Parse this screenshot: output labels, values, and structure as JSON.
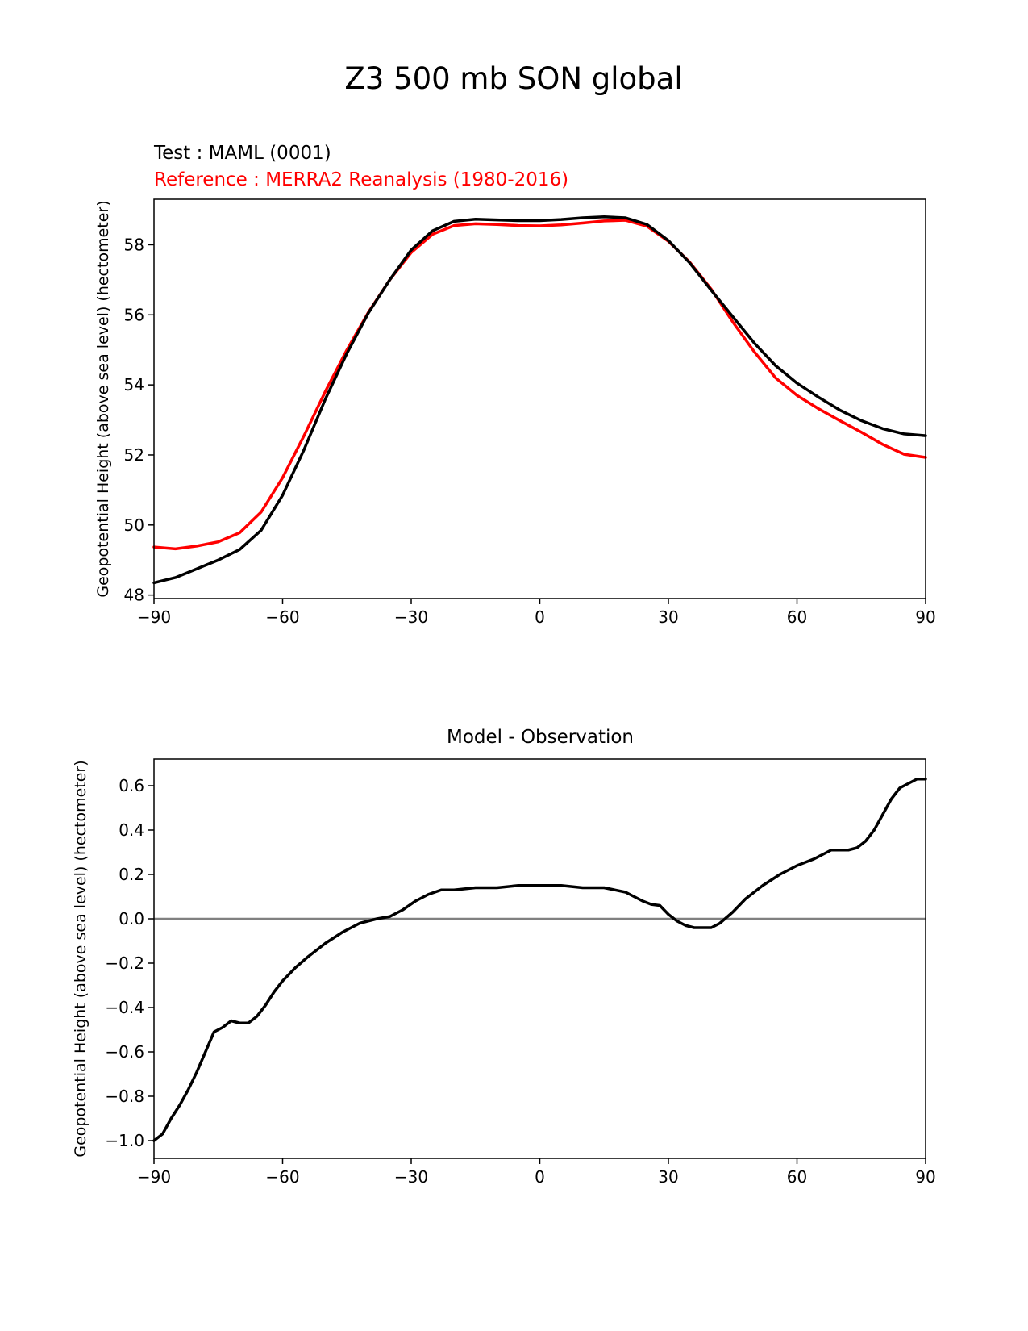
{
  "figure_title": "Z3 500 mb SON global",
  "chart_data": [
    {
      "type": "line",
      "test_label": "Test : MAML (0001)",
      "reference_label": "Reference : MERRA2 Reanalysis (1980-2016)",
      "xlabel": "",
      "ylabel": "Geopotential Height (above sea level) (hectometer)",
      "xlim": [
        -90,
        90
      ],
      "ylim": [
        47.9,
        59.3
      ],
      "xticks": [
        -90,
        -60,
        -30,
        0,
        30,
        60,
        90
      ],
      "xtick_labels": [
        "−90",
        "−60",
        "−30",
        "0",
        "30",
        "60",
        "90"
      ],
      "yticks": [
        48,
        50,
        52,
        54,
        56,
        58
      ],
      "ytick_labels": [
        "48",
        "50",
        "52",
        "54",
        "56",
        "58"
      ],
      "x": [
        -90,
        -85,
        -80,
        -75,
        -70,
        -65,
        -60,
        -55,
        -50,
        -45,
        -40,
        -35,
        -30,
        -25,
        -20,
        -15,
        -10,
        -5,
        0,
        5,
        10,
        15,
        20,
        25,
        30,
        35,
        40,
        45,
        50,
        55,
        60,
        65,
        70,
        75,
        80,
        85,
        90
      ],
      "series": [
        {
          "name": "Test",
          "color": "#000000",
          "values": [
            48.35,
            48.5,
            48.75,
            49.0,
            49.3,
            49.85,
            50.85,
            52.15,
            53.6,
            54.9,
            56.05,
            57.0,
            57.85,
            58.4,
            58.67,
            58.73,
            58.71,
            58.69,
            58.69,
            58.72,
            58.77,
            58.8,
            58.77,
            58.58,
            58.12,
            57.48,
            56.7,
            55.95,
            55.2,
            54.55,
            54.05,
            53.65,
            53.28,
            52.98,
            52.75,
            52.6,
            52.55
          ]
        },
        {
          "name": "Reference",
          "color": "#ff0000",
          "values": [
            49.37,
            49.32,
            49.4,
            49.52,
            49.78,
            50.37,
            51.35,
            52.55,
            53.82,
            55.0,
            56.07,
            57.0,
            57.78,
            58.3,
            58.55,
            58.6,
            58.58,
            58.55,
            58.54,
            58.57,
            58.62,
            58.68,
            58.7,
            58.53,
            58.1,
            57.5,
            56.73,
            55.8,
            54.95,
            54.2,
            53.7,
            53.32,
            52.98,
            52.65,
            52.3,
            52.02,
            51.93
          ]
        }
      ]
    },
    {
      "type": "line",
      "title": "Model - Observation",
      "xlabel": "",
      "ylabel": "Geopotential Height (above sea level) (hectometer)",
      "xlim": [
        -90,
        90
      ],
      "ylim": [
        -1.08,
        0.72
      ],
      "xticks": [
        -90,
        -60,
        -30,
        0,
        30,
        60,
        90
      ],
      "xtick_labels": [
        "−90",
        "−60",
        "−30",
        "0",
        "30",
        "60",
        "90"
      ],
      "yticks": [
        0.6,
        0.4,
        0.2,
        0.0,
        -0.2,
        -0.4,
        -0.6,
        -0.8,
        -1.0
      ],
      "ytick_labels": [
        "0.6",
        "0.4",
        "0.2",
        "0.0",
        "−0.2",
        "−0.4",
        "−0.6",
        "−0.8",
        "−1.0"
      ],
      "zero_line": {
        "y": 0,
        "color": "#808080"
      },
      "x": [
        -90,
        -88,
        -86,
        -84,
        -82,
        -80,
        -78,
        -76,
        -74,
        -72,
        -70,
        -68,
        -66,
        -64,
        -62,
        -60,
        -57,
        -54,
        -50,
        -46,
        -42,
        -38,
        -35,
        -32,
        -29,
        -26,
        -23,
        -20,
        -15,
        -10,
        -5,
        0,
        5,
        10,
        15,
        20,
        24,
        26,
        28,
        30,
        32,
        34,
        36,
        38,
        40,
        42,
        45,
        48,
        52,
        56,
        60,
        64,
        66,
        68,
        70,
        72,
        74,
        76,
        78,
        80,
        82,
        84,
        86,
        88,
        90
      ],
      "series": [
        {
          "name": "Model - Observation",
          "color": "#000000",
          "values": [
            -1.0,
            -0.97,
            -0.9,
            -0.84,
            -0.77,
            -0.69,
            -0.6,
            -0.51,
            -0.49,
            -0.46,
            -0.47,
            -0.47,
            -0.44,
            -0.39,
            -0.33,
            -0.28,
            -0.22,
            -0.17,
            -0.11,
            -0.06,
            -0.02,
            0.0,
            0.01,
            0.04,
            0.08,
            0.11,
            0.13,
            0.13,
            0.14,
            0.14,
            0.15,
            0.15,
            0.15,
            0.14,
            0.14,
            0.12,
            0.08,
            0.065,
            0.06,
            0.02,
            -0.01,
            -0.03,
            -0.04,
            -0.04,
            -0.04,
            -0.02,
            0.03,
            0.09,
            0.15,
            0.2,
            0.24,
            0.27,
            0.29,
            0.31,
            0.31,
            0.31,
            0.32,
            0.35,
            0.4,
            0.47,
            0.54,
            0.59,
            0.61,
            0.63,
            0.63
          ]
        }
      ]
    }
  ]
}
